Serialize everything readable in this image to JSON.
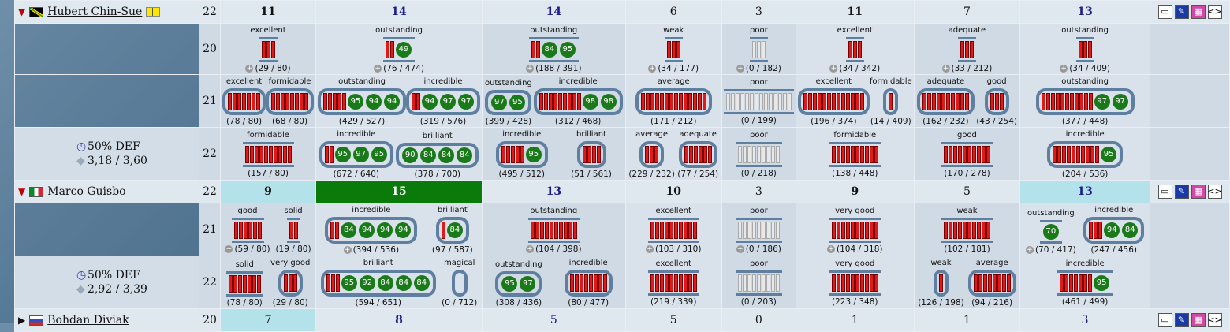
{
  "players": [
    {
      "name": "Hubert Chin-Sue",
      "flag": "jm",
      "expanded": true,
      "age": "22",
      "header": [
        "11",
        "14",
        "14",
        "6",
        "3",
        "11",
        "7",
        "13"
      ],
      "stats": null,
      "rows": [
        {
          "age": "20",
          "cells": [
            [
              {
                "r": "excellent",
                "bars": 3,
                "circ": [],
                "cnt": "(29 / 80)",
                "plus": true
              }
            ],
            [
              {
                "r": "outstanding",
                "bars": 2,
                "circ": [
                  "49"
                ],
                "cnt": "(76 / 474)",
                "plus": true
              }
            ],
            [
              {
                "r": "outstanding",
                "bars": 2,
                "circ": [
                  "84",
                  "95"
                ],
                "cnt": "(188 / 391)",
                "plus": true
              }
            ],
            [
              {
                "r": "weak",
                "bars": 3,
                "circ": [],
                "cnt": "(34 / 177)",
                "plus": true
              }
            ],
            [
              {
                "r": "poor",
                "bars": 3,
                "circ": [],
                "cnt": "(0 / 182)",
                "plus": true,
                "grey": true
              }
            ],
            [
              {
                "r": "excellent",
                "bars": 3,
                "circ": [],
                "cnt": "(34 / 342)",
                "plus": true
              }
            ],
            [
              {
                "r": "adequate",
                "bars": 3,
                "circ": [],
                "cnt": "(33 / 212)",
                "plus": true
              }
            ],
            [
              {
                "r": "outstanding",
                "bars": 3,
                "circ": [],
                "cnt": "(34 / 409)",
                "plus": true
              }
            ]
          ]
        },
        {
          "age": "21",
          "cells": [
            [
              {
                "r": "excellent",
                "bars": 7,
                "circ": [],
                "cnt": "(78 / 80)",
                "ring": true
              },
              {
                "r": "formidable",
                "bars": 8,
                "circ": [],
                "cnt": "(68 / 80)",
                "ring": true
              }
            ],
            [
              {
                "r": "outstanding",
                "bars": 5,
                "circ": [
                  "95",
                  "94",
                  "94"
                ],
                "cnt": "(429 / 527)",
                "ring": true
              },
              {
                "r": "incredible",
                "bars": 2,
                "circ": [
                  "94",
                  "97",
                  "97"
                ],
                "cnt": "(319 / 576)",
                "ring": true
              }
            ],
            [
              {
                "r": "outstanding",
                "bars": 0,
                "circ": [
                  "97",
                  "95"
                ],
                "cnt": "(399 / 428)",
                "ring": true
              },
              {
                "r": "incredible",
                "bars": 9,
                "circ": [
                  "98",
                  "98"
                ],
                "cnt": "(312 / 468)",
                "ring": true
              }
            ],
            [
              {
                "r": "average",
                "bars": 14,
                "circ": [],
                "cnt": "(171 / 212)",
                "ring": true
              }
            ],
            [
              {
                "r": "poor",
                "bars": 14,
                "circ": [],
                "cnt": "(0 / 199)",
                "grey": true
              }
            ],
            [
              {
                "r": "excellent",
                "bars": 13,
                "circ": [],
                "cnt": "(196 / 374)",
                "ring": true
              },
              {
                "r": "formidable",
                "bars": 1,
                "circ": [],
                "cnt": "(14 / 409)",
                "ring": true
              }
            ],
            [
              {
                "r": "adequate",
                "bars": 10,
                "circ": [],
                "cnt": "(162 / 232)",
                "ring": true
              },
              {
                "r": "good",
                "bars": 3,
                "circ": [],
                "cnt": "(43 / 254)",
                "ring": true
              }
            ],
            [
              {
                "r": "outstanding",
                "bars": 11,
                "circ": [
                  "97",
                  "97"
                ],
                "cnt": "(377 / 448)",
                "ring": true
              }
            ]
          ]
        },
        {
          "age": "22",
          "cells": [
            [
              {
                "r": "formidable",
                "bars": 10,
                "circ": [],
                "cnt": "(157 / 80)"
              }
            ],
            [
              {
                "r": "incredible",
                "bars": 2,
                "circ": [
                  "95",
                  "97",
                  "95"
                ],
                "cnt": "(672 / 640)",
                "ring": true
              },
              {
                "r": "brilliant",
                "bars": 0,
                "circ": [
                  "90",
                  "84",
                  "84",
                  "84"
                ],
                "cnt": "(378 / 700)",
                "ring": true
              }
            ],
            [
              {
                "r": "incredible",
                "bars": 5,
                "circ": [
                  "95"
                ],
                "cnt": "(495 / 512)",
                "ring": true
              },
              {
                "r": "brilliant",
                "bars": 4,
                "circ": [],
                "cnt": "(51 / 561)",
                "ring": true
              }
            ],
            [
              {
                "r": "average",
                "bars": 3,
                "circ": [],
                "cnt": "(229 / 232)",
                "ring": true
              },
              {
                "r": "adequate",
                "bars": 6,
                "circ": [],
                "cnt": "(77 / 254)",
                "ring": true
              }
            ],
            [
              {
                "r": "poor",
                "bars": 9,
                "circ": [],
                "cnt": "(0 / 218)",
                "grey": true
              }
            ],
            [
              {
                "r": "formidable",
                "bars": 10,
                "circ": [],
                "cnt": "(138 / 448)"
              }
            ],
            [
              {
                "r": "good",
                "bars": 10,
                "circ": [],
                "cnt": "(170 / 278)"
              }
            ],
            [
              {
                "r": "incredible",
                "bars": 10,
                "circ": [
                  "95"
                ],
                "cnt": "(204 / 536)",
                "ring": true
              }
            ]
          ]
        }
      ],
      "def": "50% DEF",
      "ratio": "3,18 / 3,60"
    },
    {
      "name": "Marco Guisbo",
      "flag": "it",
      "expanded": true,
      "age": "22",
      "header": [
        "9",
        "15",
        "13",
        "10",
        "3",
        "9",
        "5",
        "13"
      ],
      "rows": [
        {
          "age": "21",
          "cells": [
            [
              {
                "r": "good",
                "bars": 6,
                "circ": [],
                "cnt": "(59 / 80)",
                "plus": true
              },
              {
                "r": "solid",
                "bars": 2,
                "circ": [],
                "cnt": "(19 / 80)"
              }
            ],
            [
              {
                "r": "incredible",
                "bars": 2,
                "circ": [
                  "84",
                  "94",
                  "94",
                  "94"
                ],
                "cnt": "(394 / 536)",
                "plus": true,
                "ring": true
              },
              {
                "r": "brilliant",
                "bars": 1,
                "circ": [
                  "84"
                ],
                "cnt": "(97 / 587)",
                "ring": true
              }
            ],
            [
              {
                "r": "outstanding",
                "bars": 10,
                "circ": [],
                "cnt": "(104 / 398)",
                "plus": true
              }
            ],
            [
              {
                "r": "excellent",
                "bars": 10,
                "circ": [],
                "cnt": "(103 / 310)",
                "plus": true
              }
            ],
            [
              {
                "r": "poor",
                "bars": 9,
                "circ": [],
                "cnt": "(0 / 186)",
                "plus": true,
                "grey": true
              }
            ],
            [
              {
                "r": "very good",
                "bars": 10,
                "circ": [],
                "cnt": "(104 / 318)",
                "plus": true
              }
            ],
            [
              {
                "r": "weak",
                "bars": 10,
                "circ": [],
                "cnt": "(102 / 181)"
              }
            ],
            [
              {
                "r": "outstanding",
                "bars": 0,
                "circ": [
                  "70"
                ],
                "cnt": "(70 / 417)",
                "plus": true
              },
              {
                "r": "incredible",
                "bars": 3,
                "circ": [
                  "94",
                  "84"
                ],
                "cnt": "(247 / 456)",
                "ring": true
              }
            ]
          ]
        },
        {
          "age": "22",
          "cells": [
            [
              {
                "r": "solid",
                "bars": 7,
                "circ": [],
                "cnt": "(78 / 80)"
              },
              {
                "r": "very good",
                "bars": 3,
                "circ": [],
                "cnt": "(29 / 80)",
                "ring": true
              }
            ],
            [
              {
                "r": "brilliant",
                "bars": 3,
                "circ": [
                  "95",
                  "92",
                  "84",
                  "84",
                  "84"
                ],
                "cnt": "(594 / 651)",
                "ring": true
              },
              {
                "r": "magical",
                "bars": 0,
                "circ": [],
                "cnt": "(0 / 712)",
                "ring": true
              }
            ],
            [
              {
                "r": "outstanding",
                "bars": 0,
                "circ": [
                  "95",
                  "97"
                ],
                "cnt": "(308 / 436)",
                "ring": true
              },
              {
                "r": "incredible",
                "bars": 8,
                "circ": [],
                "cnt": "(80 / 477)",
                "ring": true
              }
            ],
            [
              {
                "r": "excellent",
                "bars": 10,
                "circ": [],
                "cnt": "(219 / 339)"
              }
            ],
            [
              {
                "r": "poor",
                "bars": 9,
                "circ": [],
                "cnt": "(0 / 203)",
                "grey": true
              }
            ],
            [
              {
                "r": "very good",
                "bars": 10,
                "circ": [],
                "cnt": "(223 / 348)"
              }
            ],
            [
              {
                "r": "weak",
                "bars": 1,
                "circ": [],
                "cnt": "(126 / 198)",
                "ring": true
              },
              {
                "r": "average",
                "bars": 8,
                "circ": [],
                "cnt": "(94 / 216)",
                "ring": true
              }
            ],
            [
              {
                "r": "incredible",
                "bars": 7,
                "circ": [
                  "95"
                ],
                "cnt": "(461 / 499)"
              }
            ]
          ]
        }
      ],
      "def": "50% DEF",
      "ratio": "2,92 / 3,39"
    },
    {
      "name": "Bohdan Diviak",
      "flag": "ru",
      "expanded": false,
      "age": "20",
      "header": [
        "7",
        "8",
        "5",
        "5",
        "0",
        "1",
        "1",
        "3"
      ],
      "rows": []
    }
  ],
  "icons": {
    "comment": "comment-icon",
    "edit": "pencil-icon",
    "calendar": "calendar-icon",
    "code": "code-icon",
    "book": "book-icon",
    "clock": "clock-icon",
    "shield": "shield-icon"
  },
  "colors": {
    "bar": "#e01a1a",
    "circle": "#1a7a1a",
    "highlight": "#0a7a0a",
    "cyan": "#b3e2ea"
  }
}
